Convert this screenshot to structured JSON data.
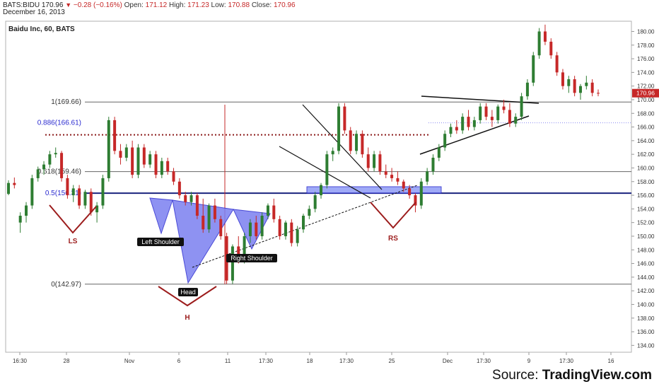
{
  "header": {
    "symbol": "BATS:BIDU",
    "last": "170.96",
    "change": "−0.28 (−0.16%)",
    "open_label": "Open:",
    "open": "171.12",
    "high_label": "High:",
    "high": "171.23",
    "low_label": "Low:",
    "low": "170.88",
    "close_label": "Close:",
    "close": "170.96",
    "date": "December 16, 2013"
  },
  "chart_data": {
    "type": "candlestick",
    "title": "Baidu Inc, 60, BATS",
    "ylim": [
      133,
      181.5
    ],
    "y_ticks": [
      "134.00",
      "136.00",
      "138.00",
      "140.00",
      "142.00",
      "144.00",
      "146.00",
      "148.00",
      "150.00",
      "152.00",
      "154.00",
      "156.00",
      "158.00",
      "160.00",
      "162.00",
      "164.00",
      "166.00",
      "168.00",
      "170.00",
      "172.00",
      "174.00",
      "176.00",
      "178.00",
      "180.00"
    ],
    "x_ticks": [
      "16:30",
      "28",
      "Nov",
      "6",
      "11",
      "17:30",
      "18",
      "17:30",
      "25",
      "Dec",
      "17:30",
      "9",
      "17:30",
      "16"
    ],
    "x_tick_pos": [
      0,
      66,
      155,
      225,
      294,
      348,
      410,
      462,
      526,
      605,
      656,
      720,
      773,
      836
    ],
    "last_price_label": "170.96",
    "candles": [
      [
        156.2,
        158.2,
        156,
        157.8
      ],
      [
        157.8,
        158.6,
        157,
        157.5
      ],
      [
        152,
        153.5,
        150.5,
        153
      ],
      [
        153,
        155,
        152,
        154.5
      ],
      [
        154.5,
        159,
        154,
        158.5
      ],
      [
        158.5,
        160.2,
        158,
        159.8
      ],
      [
        159.8,
        161,
        159,
        160.5
      ],
      [
        160.5,
        162.5,
        160,
        162
      ],
      [
        162,
        163,
        161.5,
        162.2
      ],
      [
        162.2,
        162.5,
        158,
        158.5
      ],
      [
        158.5,
        159,
        155.5,
        156
      ],
      [
        156,
        157.5,
        155,
        157
      ],
      [
        157,
        157.5,
        154,
        154.5
      ],
      [
        154.5,
        156.8,
        154,
        156.5
      ],
      [
        156.5,
        157,
        153,
        153.5
      ],
      [
        153.5,
        155,
        152,
        154.5
      ],
      [
        154.5,
        159,
        154,
        158.5
      ],
      [
        158.5,
        167.5,
        158,
        167
      ],
      [
        167,
        167.5,
        162,
        162.5
      ],
      [
        162.5,
        163.5,
        160.5,
        161.5
      ],
      [
        161.5,
        163.5,
        161,
        163
      ],
      [
        163,
        164,
        158.5,
        159
      ],
      [
        159,
        163.5,
        158.5,
        163
      ],
      [
        163,
        163.5,
        160,
        160.5
      ],
      [
        160.5,
        162.5,
        160,
        162
      ],
      [
        162,
        162.5,
        158.5,
        159
      ],
      [
        159,
        161.5,
        158.5,
        161
      ],
      [
        161,
        161.5,
        159,
        159.5
      ],
      [
        159.5,
        160,
        157.5,
        158
      ],
      [
        158,
        158.5,
        155.5,
        156
      ],
      [
        156,
        156.5,
        154.5,
        155
      ],
      [
        155,
        156.5,
        154.5,
        156
      ],
      [
        156,
        156.3,
        152.5,
        153
      ],
      [
        153,
        155.5,
        150.5,
        151
      ],
      [
        151,
        154.8,
        150.5,
        154.5
      ],
      [
        154.5,
        155.5,
        152,
        152.5
      ],
      [
        152.5,
        153,
        149.5,
        150
      ],
      [
        150,
        150.5,
        143,
        143.5
      ],
      [
        143.5,
        148.8,
        143,
        148.5
      ],
      [
        148.5,
        150,
        146,
        146.5
      ],
      [
        146.5,
        150.5,
        146,
        150
      ],
      [
        150,
        152.5,
        149,
        152
      ],
      [
        152,
        153,
        149.5,
        150
      ],
      [
        150,
        153.5,
        149.5,
        153
      ],
      [
        153,
        154.8,
        152.5,
        154.5
      ],
      [
        154.5,
        155.5,
        152,
        152.5
      ],
      [
        152.5,
        153,
        149.5,
        150
      ],
      [
        150,
        152.3,
        149.5,
        152
      ],
      [
        152,
        152.5,
        148.5,
        149
      ],
      [
        149,
        151.5,
        148.5,
        151
      ],
      [
        151,
        153.3,
        150.5,
        153
      ],
      [
        153,
        154.5,
        152.5,
        154
      ],
      [
        154,
        156.5,
        153.5,
        156
      ],
      [
        156,
        157.8,
        155.5,
        157.5
      ],
      [
        157.5,
        162.5,
        157,
        162
      ],
      [
        162,
        163,
        161,
        162.5
      ],
      [
        162.5,
        169.5,
        162,
        169
      ],
      [
        169,
        169.5,
        165,
        165.5
      ],
      [
        165.5,
        166,
        162,
        162.5
      ],
      [
        162.5,
        165.5,
        162,
        165
      ],
      [
        165,
        165.5,
        161.5,
        162
      ],
      [
        162,
        163,
        159.5,
        160
      ],
      [
        160,
        162.5,
        159.5,
        162
      ],
      [
        162,
        162.5,
        159,
        159.5
      ],
      [
        159.5,
        160.5,
        158.5,
        159
      ],
      [
        159,
        160,
        158,
        158.5
      ],
      [
        158.5,
        159.5,
        157.5,
        158
      ],
      [
        158,
        158.3,
        156.5,
        157
      ],
      [
        157,
        157.5,
        155.5,
        156
      ],
      [
        156,
        156.3,
        153.5,
        154.5
      ],
      [
        154.5,
        158.5,
        154,
        158
      ],
      [
        158,
        160,
        157.5,
        159.5
      ],
      [
        159.5,
        162,
        159,
        161.5
      ],
      [
        161.5,
        163.5,
        161,
        163
      ],
      [
        163,
        165.5,
        162.5,
        165
      ],
      [
        165,
        166.5,
        164.5,
        166
      ],
      [
        166,
        167,
        165,
        165.5
      ],
      [
        165.5,
        168,
        165,
        167.5
      ],
      [
        167.5,
        168.5,
        165.5,
        166
      ],
      [
        166,
        167.5,
        165.5,
        167
      ],
      [
        167,
        169.5,
        166.5,
        169
      ],
      [
        169,
        169.5,
        167,
        167.5
      ],
      [
        167.5,
        168.5,
        166,
        167
      ],
      [
        167,
        169.3,
        166.5,
        169
      ],
      [
        169,
        170,
        168,
        168.5
      ],
      [
        168.5,
        169.5,
        166,
        166.5
      ],
      [
        166.5,
        168,
        166,
        167.5
      ],
      [
        167.5,
        171,
        167,
        170.5
      ],
      [
        170.5,
        173,
        170,
        172.5
      ],
      [
        172.5,
        177,
        172,
        176.5
      ],
      [
        176.5,
        180.5,
        176,
        180
      ],
      [
        180,
        181,
        178,
        178.5
      ],
      [
        178.5,
        179,
        176,
        176.5
      ],
      [
        176.5,
        177,
        173.5,
        174
      ],
      [
        174,
        174.5,
        171.5,
        172
      ],
      [
        172,
        173.5,
        171,
        173
      ],
      [
        173,
        173.5,
        170.5,
        171
      ],
      [
        171,
        172.3,
        170,
        172
      ],
      [
        172,
        173.5,
        171.5,
        172.5
      ],
      [
        172.5,
        173,
        170.5,
        171
      ],
      [
        171,
        171.5,
        170.5,
        170.96
      ]
    ],
    "fib_levels": [
      {
        "ratio": "1",
        "price": 169.66,
        "label": "1(169.66)"
      },
      {
        "ratio": "0.886",
        "price": 166.61,
        "label": "0.886(166.61)"
      },
      {
        "ratio": "0.618",
        "price": 159.46,
        "label": "0.618(159.46)"
      },
      {
        "ratio": "0.5",
        "price": 156.31,
        "label": "0.5(156.31)"
      },
      {
        "ratio": "0",
        "price": 142.97,
        "label": "0(142.97)"
      }
    ],
    "annotations": {
      "left_shoulder": "Left Shoulder",
      "head": "Head",
      "right_shoulder": "Right Shoulder",
      "ls": "LS",
      "h": "H",
      "rs": "RS"
    }
  },
  "source": {
    "prefix": "Source: ",
    "brand": "TradingView.com"
  },
  "colors": {
    "up": "#2e7d32",
    "down": "#c62828",
    "fib_blue": "#1a237e",
    "fib_dotted": "#8b1a1a",
    "pattern_fill": "#7b7ff0",
    "marker": "#9c1c1c",
    "axis_text": "#333333"
  }
}
